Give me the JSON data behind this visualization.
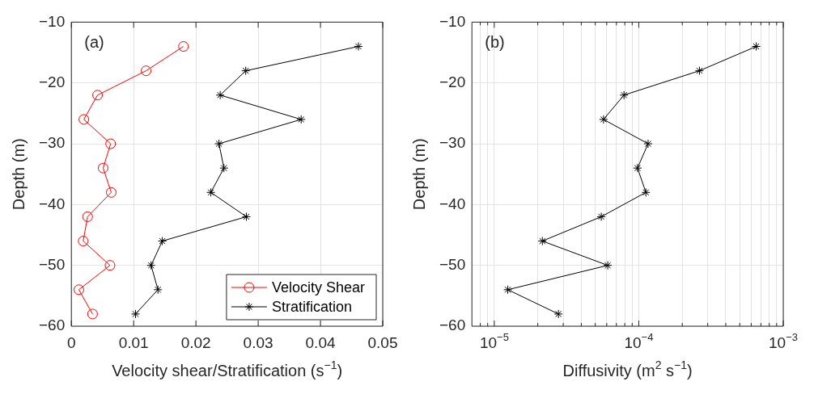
{
  "chart_data": [
    {
      "type": "line",
      "annotations": [
        "(a)"
      ],
      "xlabel": "Velocity shear/Stratification (s$^{−1}$)",
      "ylabel": "Depth (m)",
      "xlim": [
        0,
        0.05
      ],
      "xticks": [
        0,
        0.01,
        0.02,
        0.03,
        0.04,
        0.05
      ],
      "ylim": [
        -60,
        -10
      ],
      "yticks": [
        -60,
        -50,
        -40,
        -30,
        -20,
        -10
      ],
      "grid": true,
      "legend": "bottom right",
      "line_style": "solid",
      "series": [
        {
          "name": "Velocity Shear",
          "color": "#ff0000",
          "marker": "circle",
          "x": [
            0.018,
            0.012,
            0.0042,
            0.002,
            0.0063,
            0.0051,
            0.0064,
            0.0026,
            0.0019,
            0.0062,
            0.0012,
            0.0034
          ],
          "values": [
            -14,
            -18,
            -22,
            -26,
            -30,
            -34,
            -38,
            -42,
            -46,
            -50,
            -54,
            -58
          ]
        },
        {
          "name": "Stratification",
          "color": "#000000",
          "marker": "cross",
          "x": [
            0.0461,
            0.028,
            0.0239,
            0.0369,
            0.0237,
            0.0245,
            0.0224,
            0.0281,
            0.0146,
            0.0128,
            0.0139,
            0.0103
          ],
          "values": [
            -14,
            -18,
            -22,
            -26,
            -30,
            -34,
            -38,
            -42,
            -46,
            -50,
            -54,
            -58
          ]
        }
      ]
    },
    {
      "type": "line",
      "annotations": [
        "(b)"
      ],
      "xlabel": "Diffusivity (m$^{2}$ s$^{−1}$)",
      "ylabel": "Depth (m)",
      "log": "x",
      "xlim": [
        7e-06,
        0.001
      ],
      "xticks": [
        {
          "value": 8e-06,
          "label": null
        },
        {
          "value": 9e-06,
          "label": null
        },
        {
          "value": 1e-05,
          "label": "10$^{−5}$"
        },
        {
          "value": 2e-05,
          "label": null
        },
        {
          "value": 3e-05,
          "label": null
        },
        {
          "value": 4e-05,
          "label": null
        },
        {
          "value": 5e-05,
          "label": null
        },
        {
          "value": 6e-05,
          "label": null
        },
        {
          "value": 7e-05,
          "label": null
        },
        {
          "value": 8e-05,
          "label": null
        },
        {
          "value": 9e-05,
          "label": null
        },
        {
          "value": 0.0001,
          "label": "10$^{−4}$"
        },
        {
          "value": 0.0002,
          "label": null
        },
        {
          "value": 0.0003,
          "label": null
        },
        {
          "value": 0.0004,
          "label": null
        },
        {
          "value": 0.0005,
          "label": null
        },
        {
          "value": 0.0006,
          "label": null
        },
        {
          "value": 0.0007,
          "label": null
        },
        {
          "value": 0.0008,
          "label": null
        },
        {
          "value": 0.0009,
          "label": null
        },
        {
          "value": 0.001,
          "label": "10$^{−3}$"
        }
      ],
      "ylim": [
        -60,
        -10
      ],
      "yticks": [
        -60,
        -50,
        -40,
        -30,
        -20,
        -10
      ],
      "grid": true,
      "line_style": "solid",
      "series": [
        {
          "color": "#000000",
          "marker": "cross",
          "x": [
            0.00065,
            0.000263,
            7.9e-05,
            5.7e-05,
            0.000116,
            9.8e-05,
            0.000112,
            5.5e-05,
            2.15e-05,
            6.1e-05,
            1.24e-05,
            2.78e-05
          ],
          "values": [
            -14,
            -18,
            -22,
            -26,
            -30,
            -34,
            -38,
            -42,
            -46,
            -50,
            -54,
            -58
          ]
        }
      ]
    }
  ]
}
